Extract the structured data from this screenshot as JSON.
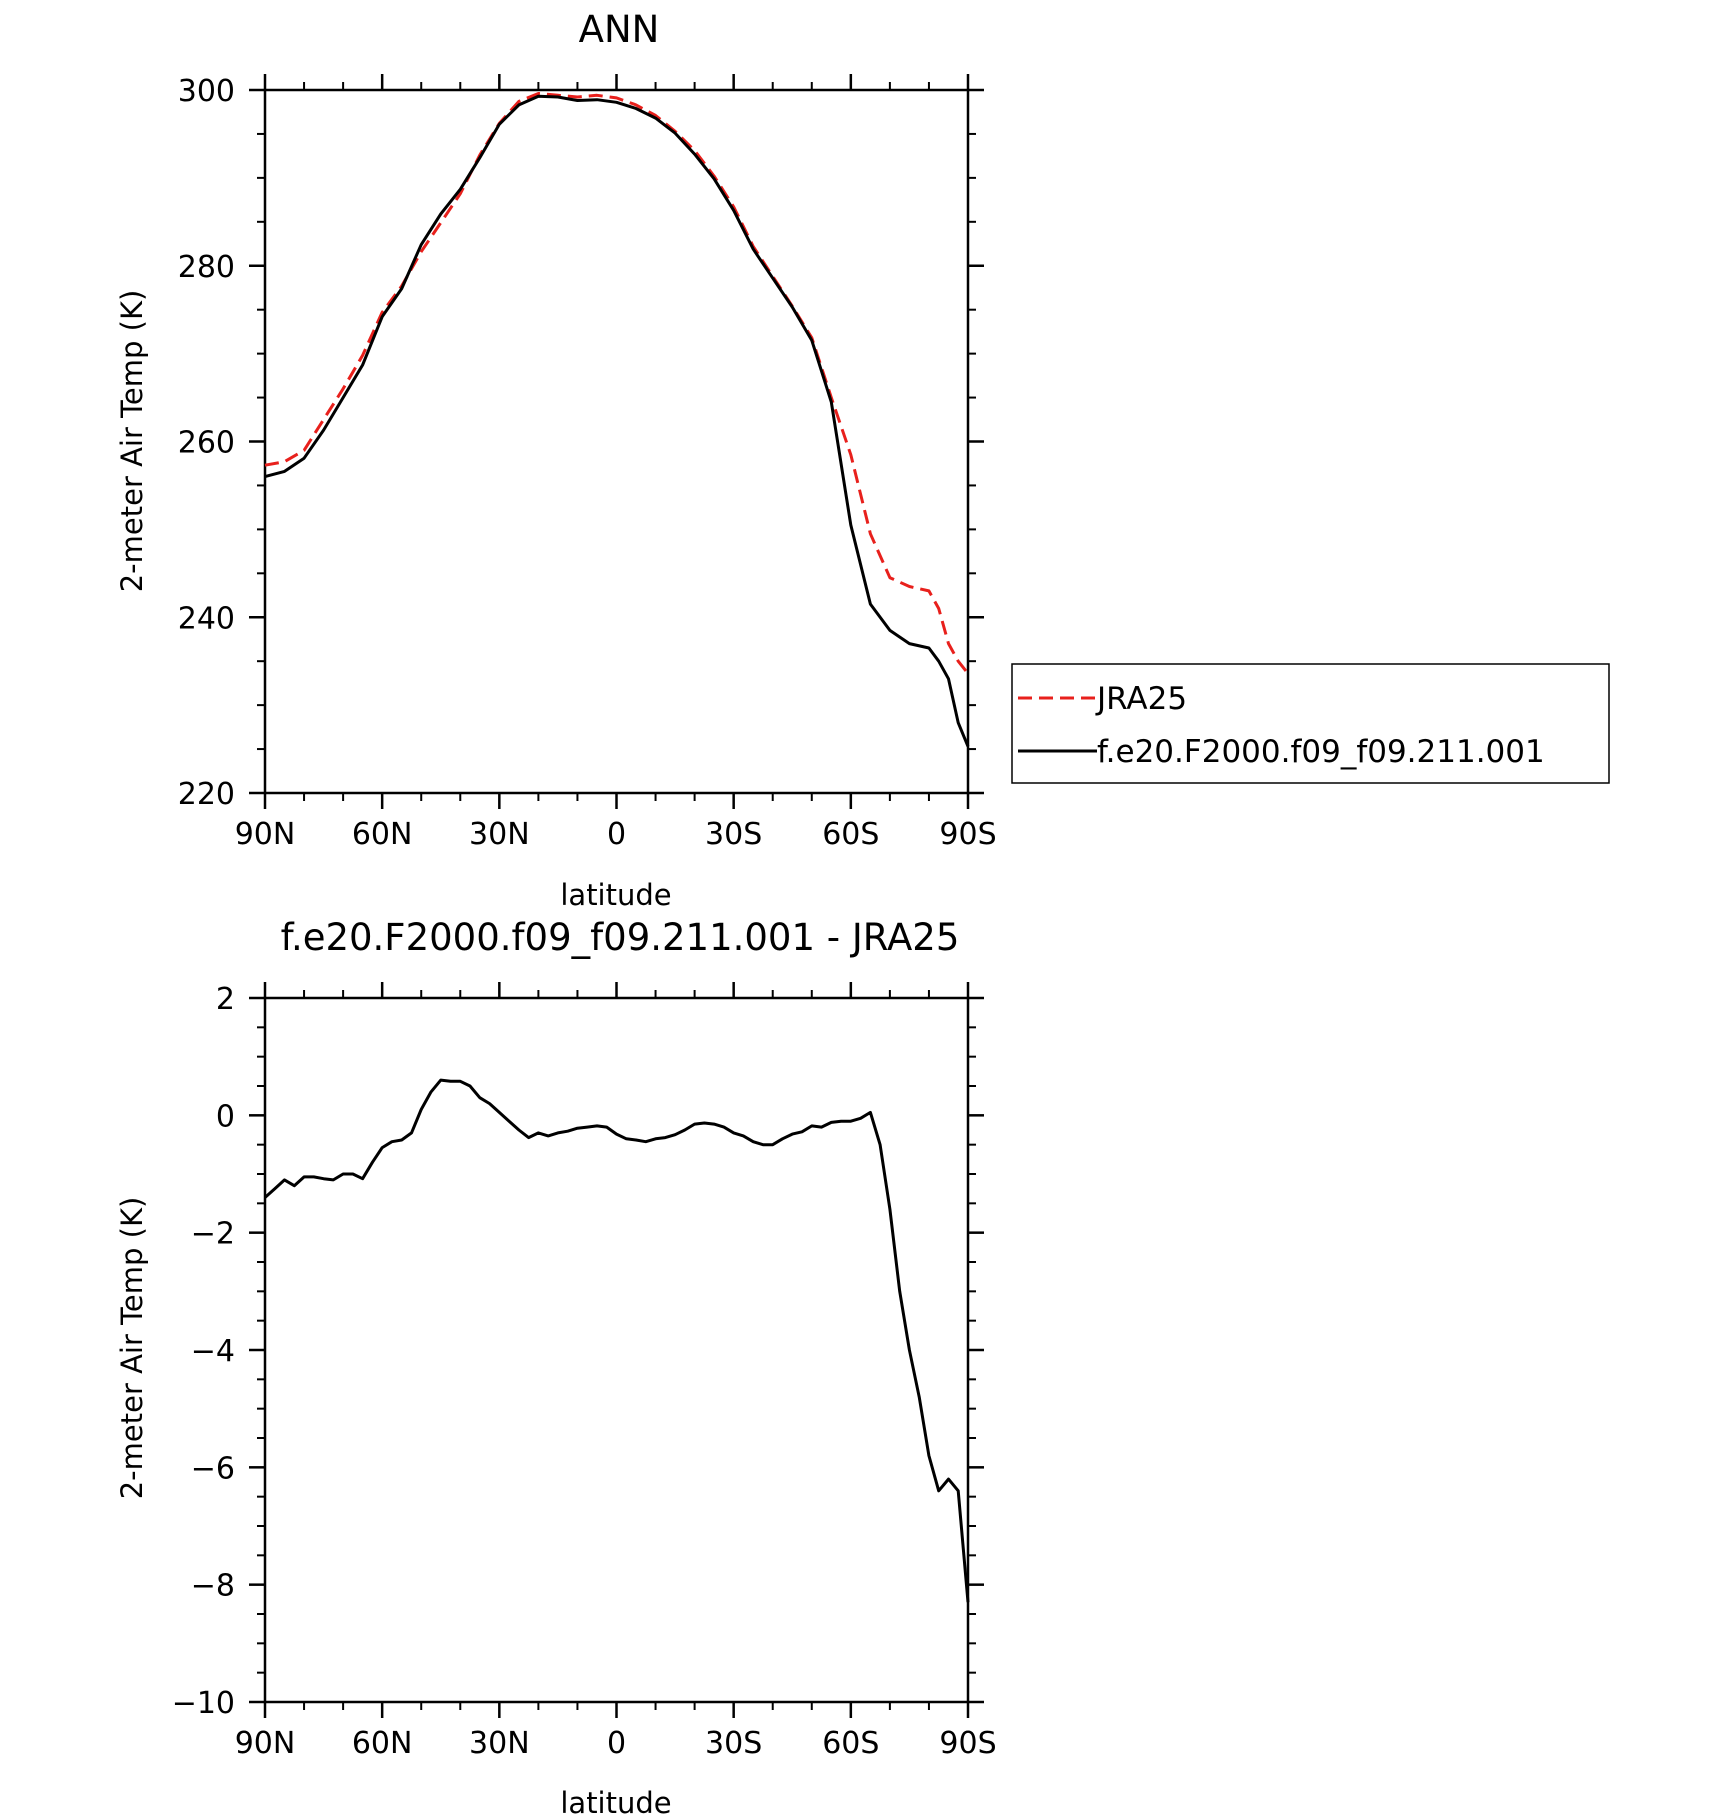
{
  "chart_data": [
    {
      "type": "line",
      "title": "ANN",
      "xlabel": "latitude",
      "ylabel": "2-meter Air Temp (K)",
      "xlim": [
        90,
        -90
      ],
      "ylim": [
        220,
        300
      ],
      "xticks": [
        90,
        60,
        30,
        0,
        -30,
        -60,
        -90
      ],
      "xtick_labels": [
        "90N",
        "60N",
        "30N",
        "0",
        "30S",
        "60S",
        "90S"
      ],
      "yticks": [
        220,
        240,
        260,
        280,
        300
      ],
      "ytick_labels": [
        "220",
        "240",
        "260",
        "280",
        "300"
      ],
      "grid": false,
      "legend": "right",
      "x": [
        90,
        85,
        80,
        75,
        70,
        65,
        60,
        55,
        50,
        45,
        40,
        35,
        30,
        25,
        20,
        15,
        10,
        5,
        0,
        -5,
        -10,
        -15,
        -20,
        -25,
        -30,
        -35,
        -40,
        -45,
        -50,
        -55,
        -60,
        -65,
        -70,
        -75,
        -80,
        -82.5,
        -85,
        -87.5,
        -90
      ],
      "series": [
        {
          "name": "JRA25",
          "color": "#e8201c",
          "dash": "dashed",
          "values": [
            257.3,
            257.7,
            259.0,
            262.5,
            266.0,
            269.8,
            274.7,
            277.7,
            281.6,
            284.9,
            288.2,
            292.6,
            296.2,
            298.7,
            299.6,
            299.4,
            299.2,
            299.4,
            299.1,
            298.3,
            297.1,
            295.3,
            293.1,
            290.2,
            286.7,
            282.2,
            278.8,
            275.4,
            271.8,
            265.0,
            258.5,
            249.5,
            244.5,
            243.5,
            243.0,
            241.0,
            237.0,
            235.0,
            233.6
          ]
        },
        {
          "name": "f.e20.F2000.f09_f09.211.001",
          "color": "#000000",
          "dash": "solid",
          "values": [
            256.0,
            256.6,
            258.1,
            261.3,
            265.0,
            268.7,
            274.2,
            277.4,
            282.4,
            285.9,
            288.7,
            292.3,
            296.1,
            298.3,
            299.3,
            299.2,
            298.8,
            298.9,
            298.6,
            297.9,
            296.8,
            295.1,
            292.7,
            289.9,
            286.3,
            281.9,
            278.6,
            275.3,
            271.5,
            264.5,
            250.5,
            241.5,
            238.5,
            237.0,
            236.5,
            235.0,
            233.0,
            228.0,
            225.3
          ]
        }
      ]
    },
    {
      "type": "line",
      "title": "f.e20.F2000.f09_f09.211.001 - JRA25",
      "xlabel": "latitude",
      "ylabel": "2-meter Air Temp (K)",
      "xlim": [
        90,
        -90
      ],
      "ylim": [
        -10,
        2
      ],
      "xticks": [
        90,
        60,
        30,
        0,
        -30,
        -60,
        -90
      ],
      "xtick_labels": [
        "90N",
        "60N",
        "30N",
        "0",
        "30S",
        "60S",
        "90S"
      ],
      "yticks": [
        -10,
        -8,
        -6,
        -4,
        -2,
        0,
        2
      ],
      "ytick_labels": [
        "−10",
        "−8",
        "−6",
        "−4",
        "−2",
        "0",
        "2"
      ],
      "grid": false,
      "x": [
        90,
        87.5,
        85,
        82.5,
        80,
        77.5,
        75,
        72.5,
        70,
        67.5,
        65,
        62.5,
        60,
        57.5,
        55,
        52.5,
        50,
        47.5,
        45,
        42.5,
        40,
        37.5,
        35,
        32.5,
        30,
        27.5,
        25,
        22.5,
        20,
        17.5,
        15,
        12.5,
        10,
        7.5,
        5,
        2.5,
        0,
        -2.5,
        -5,
        -7.5,
        -10,
        -12.5,
        -15,
        -17.5,
        -20,
        -22.5,
        -25,
        -27.5,
        -30,
        -32.5,
        -35,
        -37.5,
        -40,
        -42.5,
        -45,
        -47.5,
        -50,
        -52.5,
        -55,
        -57.5,
        -60,
        -62.5,
        -65,
        -67.5,
        -70,
        -72.5,
        -75,
        -77.5,
        -80,
        -82.5,
        -85,
        -87.5,
        -90
      ],
      "series": [
        {
          "color": "#000000",
          "dash": "solid",
          "values": [
            -1.4,
            -1.25,
            -1.1,
            -1.2,
            -1.05,
            -1.05,
            -1.08,
            -1.1,
            -1.0,
            -1.0,
            -1.08,
            -0.8,
            -0.55,
            -0.45,
            -0.42,
            -0.3,
            0.1,
            0.4,
            0.6,
            0.58,
            0.58,
            0.5,
            0.3,
            0.2,
            0.05,
            -0.1,
            -0.25,
            -0.38,
            -0.3,
            -0.35,
            -0.3,
            -0.27,
            -0.22,
            -0.2,
            -0.18,
            -0.2,
            -0.32,
            -0.4,
            -0.42,
            -0.45,
            -0.4,
            -0.38,
            -0.33,
            -0.25,
            -0.15,
            -0.13,
            -0.15,
            -0.2,
            -0.3,
            -0.35,
            -0.45,
            -0.5,
            -0.5,
            -0.4,
            -0.32,
            -0.28,
            -0.18,
            -0.2,
            -0.12,
            -0.1,
            -0.1,
            -0.05,
            0.05,
            -0.5,
            -1.6,
            -3.0,
            -4.0,
            -4.8,
            -5.8,
            -6.4,
            -6.2,
            -6.4,
            -8.3
          ]
        }
      ]
    }
  ]
}
